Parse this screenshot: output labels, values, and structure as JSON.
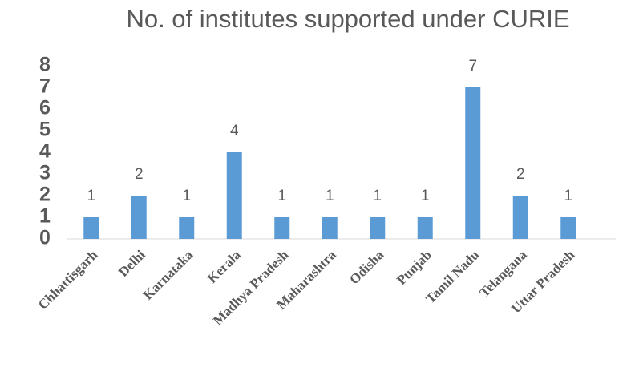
{
  "chart_data": {
    "type": "bar",
    "title": "No. of institutes supported under CURIE",
    "categories": [
      "Chhattisgarh",
      "Delhi",
      "Karnataka",
      "Kerala",
      "Madhya Pradesh",
      "Maharashtra",
      "Odisha",
      "Punjab",
      "Tamil Nadu",
      "Telangana",
      "Uttar Pradesh"
    ],
    "values": [
      1,
      2,
      1,
      4,
      1,
      1,
      1,
      1,
      7,
      2,
      1
    ],
    "color": "#5b9bd5",
    "ylim": [
      0,
      8
    ],
    "yticks": [
      0,
      1,
      2,
      3,
      4,
      5,
      6,
      7,
      8
    ],
    "grid": false
  }
}
